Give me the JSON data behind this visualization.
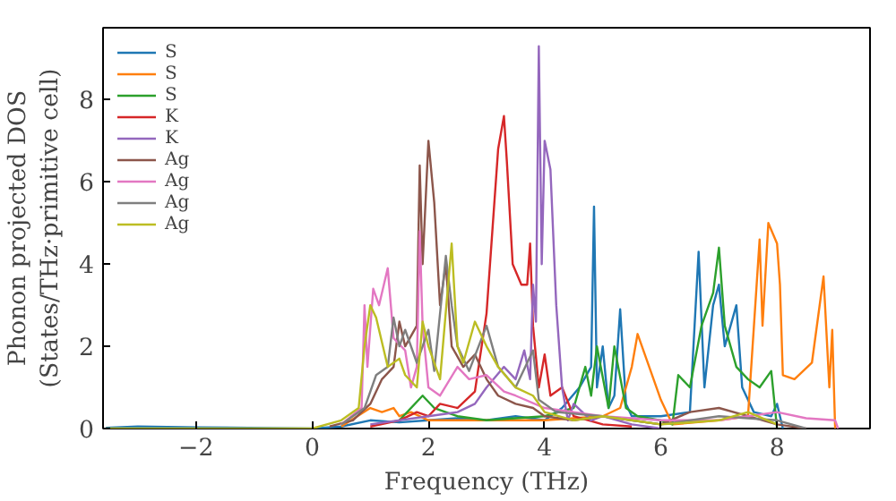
{
  "chart_data": {
    "type": "line",
    "xlabel": "Frequency (THz)",
    "ylabel": "Phonon projected DOS\n(States/THz·primitive cell)",
    "xlim": [
      -3.6,
      9.6
    ],
    "ylim": [
      0,
      9.75
    ],
    "xticks": [
      {
        "value": -2,
        "label": "−2"
      },
      0,
      2,
      4,
      6,
      8
    ],
    "yticks": [
      0,
      2,
      4,
      6,
      8
    ],
    "grid": false,
    "legend": "top left",
    "series": [
      {
        "name": "S",
        "color": "#1f77b4",
        "x": [
          -3.55,
          -3,
          -2,
          0,
          0.5,
          1,
          1.5,
          2,
          2.5,
          3,
          3.5,
          4,
          4.3,
          4.6,
          4.8,
          4.85,
          4.9,
          5.0,
          5.1,
          5.2,
          5.3,
          5.4,
          5.5,
          6,
          6.5,
          6.65,
          6.75,
          6.9,
          7.0,
          7.1,
          7.3,
          7.4,
          7.6,
          7.9,
          8.0,
          8.1
        ],
        "values": [
          0.02,
          0.05,
          0.03,
          0,
          0.05,
          0.2,
          0.15,
          0.2,
          0.25,
          0.2,
          0.3,
          0.2,
          0.5,
          1.0,
          1.5,
          5.4,
          1.0,
          2.0,
          0.5,
          0.8,
          2.9,
          0.6,
          0.3,
          0.3,
          0.4,
          4.3,
          1.0,
          3.0,
          3.5,
          2.0,
          3.0,
          1.0,
          0.4,
          0.3,
          0.6,
          0
        ]
      },
      {
        "name": "S",
        "color": "#ff7f0e",
        "x": [
          0.5,
          1.0,
          1.2,
          1.4,
          1.5,
          1.7,
          2,
          3,
          4,
          5,
          5.3,
          5.5,
          5.6,
          5.8,
          6.0,
          6.2,
          7,
          7.5,
          7.7,
          7.75,
          7.85,
          8.0,
          8.05,
          8.1,
          8.3,
          8.6,
          8.8,
          8.9,
          8.95,
          9.0
        ],
        "values": [
          0.05,
          0.5,
          0.4,
          0.5,
          0.3,
          0.4,
          0.2,
          0.2,
          0.2,
          0.3,
          0.5,
          1.5,
          2.3,
          1.5,
          0.7,
          0.1,
          0.2,
          0.3,
          4.6,
          2.5,
          5.0,
          4.5,
          3.5,
          1.3,
          1.2,
          1.6,
          3.7,
          1.0,
          2.4,
          0
        ]
      },
      {
        "name": "S",
        "color": "#2ca02c",
        "x": [
          1.5,
          1.9,
          2.1,
          2.5,
          3,
          4,
          4.5,
          4.7,
          4.8,
          4.9,
          5.1,
          5.2,
          5.4,
          5.6,
          6,
          6.2,
          6.3,
          6.5,
          6.7,
          6.9,
          7.0,
          7.1,
          7.3,
          7.5,
          7.7,
          7.9,
          8.0
        ],
        "values": [
          0.2,
          0.8,
          0.5,
          0.3,
          0.2,
          0.3,
          0.5,
          1.5,
          0.8,
          2.0,
          0.5,
          2.0,
          0.5,
          0.3,
          0.2,
          0.1,
          1.3,
          1.0,
          2.5,
          3.3,
          4.4,
          2.5,
          1.5,
          1.2,
          1.0,
          1.4,
          0
        ]
      },
      {
        "name": "K",
        "color": "#d62728",
        "x": [
          1,
          1.5,
          1.8,
          2,
          2.2,
          2.5,
          2.8,
          3.0,
          3.2,
          3.3,
          3.35,
          3.45,
          3.6,
          3.7,
          3.75,
          3.8,
          3.9,
          4.0,
          4.1,
          4.3,
          4.5,
          5,
          5.5
        ],
        "values": [
          0.05,
          0.2,
          0.4,
          0.3,
          0.6,
          0.5,
          0.9,
          2.8,
          6.8,
          7.6,
          6.5,
          4.0,
          3.5,
          3.5,
          4.5,
          2.5,
          1.0,
          1.8,
          0.8,
          1.0,
          0.3,
          0.1,
          0.05
        ]
      },
      {
        "name": "K",
        "color": "#9467bd",
        "x": [
          1,
          2,
          2.5,
          2.8,
          3.0,
          3.3,
          3.5,
          3.65,
          3.75,
          3.8,
          3.85,
          3.9,
          3.95,
          4.0,
          4.1,
          4.2,
          4.3,
          4.4,
          4.5,
          4.8,
          5,
          5.5,
          6
        ],
        "values": [
          0.1,
          0.3,
          0.4,
          0.6,
          1.0,
          1.5,
          1.2,
          1.9,
          1.2,
          3.5,
          2.6,
          9.3,
          4.0,
          7.0,
          6.3,
          3.0,
          1.0,
          0.2,
          0.6,
          0.2,
          0.3,
          0.1,
          0
        ]
      },
      {
        "name": "Ag",
        "color": "#8c564b",
        "x": [
          0.3,
          0.7,
          1.0,
          1.2,
          1.4,
          1.5,
          1.6,
          1.8,
          1.85,
          1.9,
          2.0,
          2.1,
          2.2,
          2.3,
          2.4,
          2.6,
          2.8,
          3.0,
          3.2,
          3.5,
          3.8,
          4.0,
          4.5,
          5,
          6,
          6.5,
          7,
          7.5,
          8,
          8.5
        ],
        "values": [
          0.05,
          0.2,
          0.6,
          1.2,
          1.5,
          2.6,
          2.0,
          2.5,
          6.4,
          4.0,
          7.0,
          5.5,
          3.0,
          4.0,
          2.0,
          1.5,
          1.8,
          1.2,
          0.8,
          0.6,
          0.5,
          0.3,
          0.2,
          0.3,
          0.1,
          0.4,
          0.5,
          0.3,
          0.1,
          0
        ]
      },
      {
        "name": "Ag",
        "color": "#e377c2",
        "x": [
          0.5,
          0.85,
          0.9,
          0.95,
          1.05,
          1.15,
          1.3,
          1.4,
          1.6,
          1.7,
          1.8,
          1.85,
          1.9,
          2.0,
          2.2,
          2.5,
          2.7,
          3.0,
          3.3,
          3.5,
          4,
          4.5,
          5,
          6,
          7,
          7.5,
          8,
          8.5,
          9,
          9.05
        ],
        "values": [
          0.1,
          0.5,
          3.0,
          1.5,
          3.4,
          3.0,
          3.9,
          2.2,
          1.9,
          1.0,
          1.5,
          4.8,
          2.5,
          1.0,
          0.8,
          1.5,
          1.2,
          1.3,
          0.9,
          0.8,
          0.5,
          0.4,
          0.3,
          0.2,
          0.2,
          0.3,
          0.4,
          0.25,
          0.2,
          0
        ]
      },
      {
        "name": "Ag",
        "color": "#7f7f7f",
        "x": [
          0.5,
          0.9,
          1.1,
          1.3,
          1.4,
          1.5,
          1.6,
          1.8,
          2.0,
          2.1,
          2.3,
          2.4,
          2.5,
          2.7,
          3.0,
          3.2,
          3.5,
          3.8,
          3.9,
          4.2,
          5,
          6,
          7,
          8,
          8.5
        ],
        "values": [
          0.1,
          0.5,
          1.3,
          1.5,
          2.7,
          2.0,
          2.4,
          1.6,
          2.4,
          1.4,
          4.2,
          3.0,
          2.0,
          1.4,
          2.5,
          1.5,
          1.0,
          1.9,
          0.7,
          0.4,
          0.3,
          0.1,
          0.3,
          0.2,
          0
        ]
      },
      {
        "name": "Ag",
        "color": "#bcbd22",
        "x": [
          -3.55,
          0,
          0.5,
          0.8,
          0.9,
          1.0,
          1.1,
          1.3,
          1.5,
          1.6,
          1.8,
          1.9,
          2.0,
          2.2,
          2.4,
          2.5,
          2.6,
          2.8,
          3.0,
          3.2,
          3.5,
          3.8,
          4.0,
          4.5,
          5,
          6,
          7,
          7.5,
          8
        ],
        "values": [
          0,
          0,
          0.2,
          0.5,
          2.0,
          3.0,
          2.7,
          1.5,
          1.7,
          1.3,
          1.0,
          2.6,
          2.0,
          1.2,
          4.5,
          2.0,
          1.6,
          2.6,
          2.0,
          1.5,
          1.0,
          0.8,
          0.4,
          0.2,
          0.3,
          0.1,
          0.2,
          0.4,
          0.1
        ]
      }
    ]
  }
}
